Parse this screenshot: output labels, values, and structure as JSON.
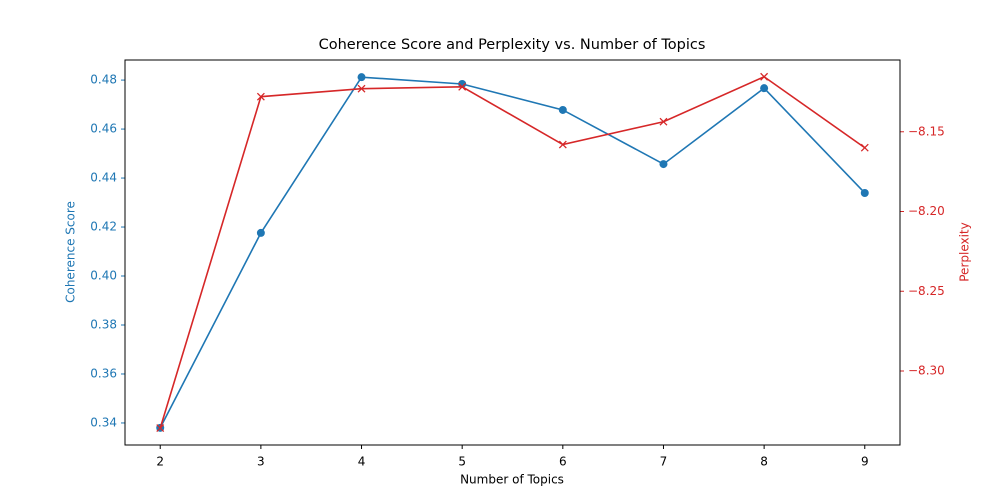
{
  "chart_data": {
    "type": "line",
    "title": "Coherence Score and Perplexity vs. Number of Topics",
    "x_label": "Number of Topics",
    "y_label": "Coherence Score",
    "y2_label": "Perplexity",
    "x": [
      2,
      3,
      4,
      5,
      6,
      7,
      8,
      9
    ],
    "xlim": [
      1.65,
      9.35
    ],
    "xticks": [
      2,
      3,
      4,
      5,
      6,
      7,
      8,
      9
    ],
    "ylim": [
      0.331,
      0.4882
    ],
    "yticks": [
      0.34,
      0.36,
      0.38,
      {
        "value": 0.4,
        "label": "0.40"
      },
      0.42,
      0.44,
      0.46,
      0.48
    ],
    "y2lim": [
      -8.3464,
      -8.105
    ],
    "y2ticks": [
      {
        "value": -8.15,
        "label": "−8.15"
      },
      {
        "value": -8.2,
        "label": "−8.20"
      },
      {
        "value": -8.25,
        "label": "−8.25"
      },
      {
        "value": -8.3,
        "label": "−8.30"
      }
    ],
    "y_color": "#1f77b4",
    "y2_color": "#d62728",
    "series": [
      {
        "name": "Coherence Score",
        "color": "#1f77b4",
        "marker": "circle",
        "axis": "y",
        "values": [
          0.338,
          0.4176,
          0.4812,
          0.4784,
          0.4678,
          0.4457,
          0.4767,
          0.4339
        ]
      },
      {
        "name": "Perplexity",
        "color": "#d62728",
        "marker": "x",
        "axis": "y2",
        "values": [
          -8.3358,
          -8.128,
          -8.123,
          -8.1218,
          -8.158,
          -8.1437,
          -8.1155,
          -8.16
        ]
      }
    ]
  }
}
